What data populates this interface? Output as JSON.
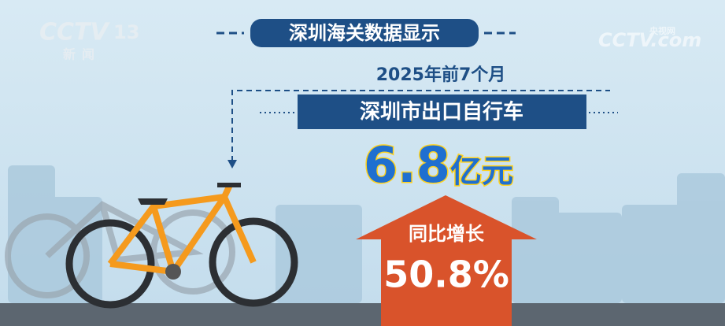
{
  "logo": {
    "channel": "CCTV",
    "number": "13",
    "label": "新闻"
  },
  "watermark": {
    "brand": "CCTV.com",
    "label": "央视网"
  },
  "header": {
    "source": "深圳海关数据显示",
    "period": "2025年前7个月",
    "subject": "深圳市出口自行车"
  },
  "value": {
    "amount": "6.8",
    "unit": "亿元"
  },
  "growth": {
    "label": "同比增长",
    "value": "50.8%"
  }
}
